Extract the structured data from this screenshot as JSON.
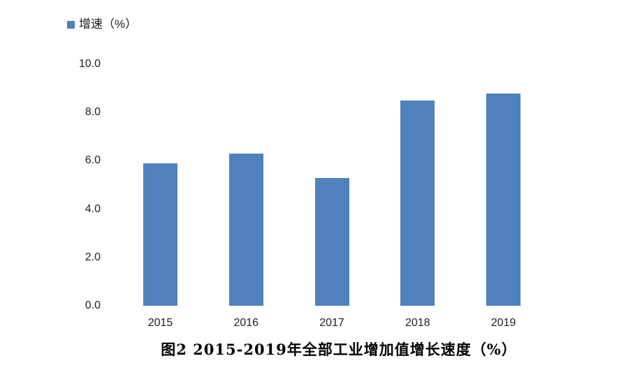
{
  "legend": {
    "label": "增速（%）"
  },
  "title": "图2 2015-2019年全部工业增加值增长速度（%）",
  "chart_data": {
    "type": "bar",
    "title": "图2 2015-2019年全部工业增加值增长速度（%）",
    "series_name": "增速（%）",
    "categories": [
      "2015",
      "2016",
      "2017",
      "2018",
      "2019"
    ],
    "values": [
      5.9,
      6.3,
      5.3,
      8.5,
      8.8
    ],
    "unit": "%",
    "xlabel": "",
    "ylabel": "",
    "ylim": [
      0,
      10
    ],
    "ytick_labels": [
      "0.0",
      "2.0",
      "4.0",
      "6.0",
      "8.0",
      "10.0"
    ],
    "ytick_values": [
      0,
      2,
      4,
      6,
      8,
      10
    ],
    "bar_color": "#4F81BD",
    "grid": false,
    "axis_lines": false,
    "legend_position": "top-left",
    "background": "#FFFFFF"
  }
}
